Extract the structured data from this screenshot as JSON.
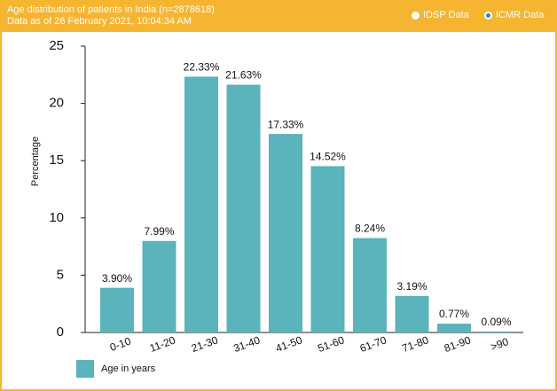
{
  "header": {
    "title": "Age distribution of patients in India (n=2878618)",
    "subtitle": "Data as of 26 February 2021, 10:04:34 AM",
    "options": [
      "IDSP Data",
      "ICMR Data"
    ]
  },
  "chart_data": {
    "type": "bar",
    "y_label": "Percentage",
    "categories": [
      "0-10",
      "11-20",
      "21-30",
      "31-40",
      "41-50",
      "51-60",
      "61-70",
      "71-80",
      "81-90",
      ">90"
    ],
    "series": [
      {
        "name": "Age in years",
        "color": "#5bb3bb",
        "values": [
          3.9,
          7.99,
          22.33,
          21.63,
          17.33,
          14.52,
          8.24,
          3.19,
          0.77,
          0.09
        ],
        "value_labels": [
          "3.90%",
          "7.99%",
          "22.33%",
          "21.63%",
          "17.33%",
          "14.52%",
          "8.24%",
          "3.19%",
          "0.77%",
          "0.09%"
        ]
      }
    ],
    "ylim": [
      0,
      25
    ],
    "yticks": [
      0,
      5,
      10,
      15,
      20,
      25
    ],
    "grid": false,
    "legend": "bottom-left"
  }
}
